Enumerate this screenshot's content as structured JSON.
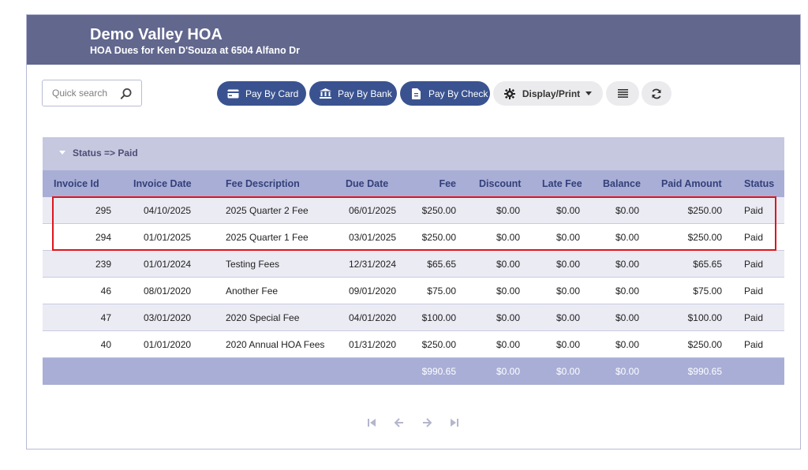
{
  "header": {
    "title": "Demo Valley HOA",
    "subtitle": "HOA Dues for Ken D'Souza at 6504 Alfano Dr"
  },
  "toolbar": {
    "search_placeholder": "Quick search",
    "pay_card": "Pay By Card",
    "pay_bank": "Pay By Bank",
    "pay_check": "Pay By Check",
    "display_print": "Display/Print"
  },
  "group": {
    "label": "Status => Paid"
  },
  "columns": [
    "Invoice Id",
    "Invoice Date",
    "Fee Description",
    "Due Date",
    "Fee",
    "Discount",
    "Late Fee",
    "Balance",
    "Paid Amount",
    "Status"
  ],
  "rows": [
    {
      "id": "295",
      "date": "04/10/2025",
      "desc": "2025 Quarter 2 Fee",
      "due": "06/01/2025",
      "fee": "$250.00",
      "discount": "$0.00",
      "late": "$0.00",
      "balance": "$0.00",
      "paid": "$250.00",
      "status": "Paid"
    },
    {
      "id": "294",
      "date": "01/01/2025",
      "desc": "2025 Quarter 1 Fee",
      "due": "03/01/2025",
      "fee": "$250.00",
      "discount": "$0.00",
      "late": "$0.00",
      "balance": "$0.00",
      "paid": "$250.00",
      "status": "Paid"
    },
    {
      "id": "239",
      "date": "01/01/2024",
      "desc": "Testing Fees",
      "due": "12/31/2024",
      "fee": "$65.65",
      "discount": "$0.00",
      "late": "$0.00",
      "balance": "$0.00",
      "paid": "$65.65",
      "status": "Paid"
    },
    {
      "id": "46",
      "date": "08/01/2020",
      "desc": "Another Fee",
      "due": "09/01/2020",
      "fee": "$75.00",
      "discount": "$0.00",
      "late": "$0.00",
      "balance": "$0.00",
      "paid": "$75.00",
      "status": "Paid"
    },
    {
      "id": "47",
      "date": "03/01/2020",
      "desc": "2020 Special Fee",
      "due": "04/01/2020",
      "fee": "$100.00",
      "discount": "$0.00",
      "late": "$0.00",
      "balance": "$0.00",
      "paid": "$100.00",
      "status": "Paid"
    },
    {
      "id": "40",
      "date": "01/01/2020",
      "desc": "2020 Annual HOA Fees",
      "due": "01/31/2020",
      "fee": "$250.00",
      "discount": "$0.00",
      "late": "$0.00",
      "balance": "$0.00",
      "paid": "$250.00",
      "status": "Paid"
    }
  ],
  "totals": {
    "fee": "$990.65",
    "discount": "$0.00",
    "late": "$0.00",
    "balance": "$0.00",
    "paid": "$990.65"
  },
  "colors": {
    "header_bg": "#62678e",
    "pay_button": "#3a5390",
    "table_header": "#a9aed6",
    "highlight": "#e0141c"
  }
}
